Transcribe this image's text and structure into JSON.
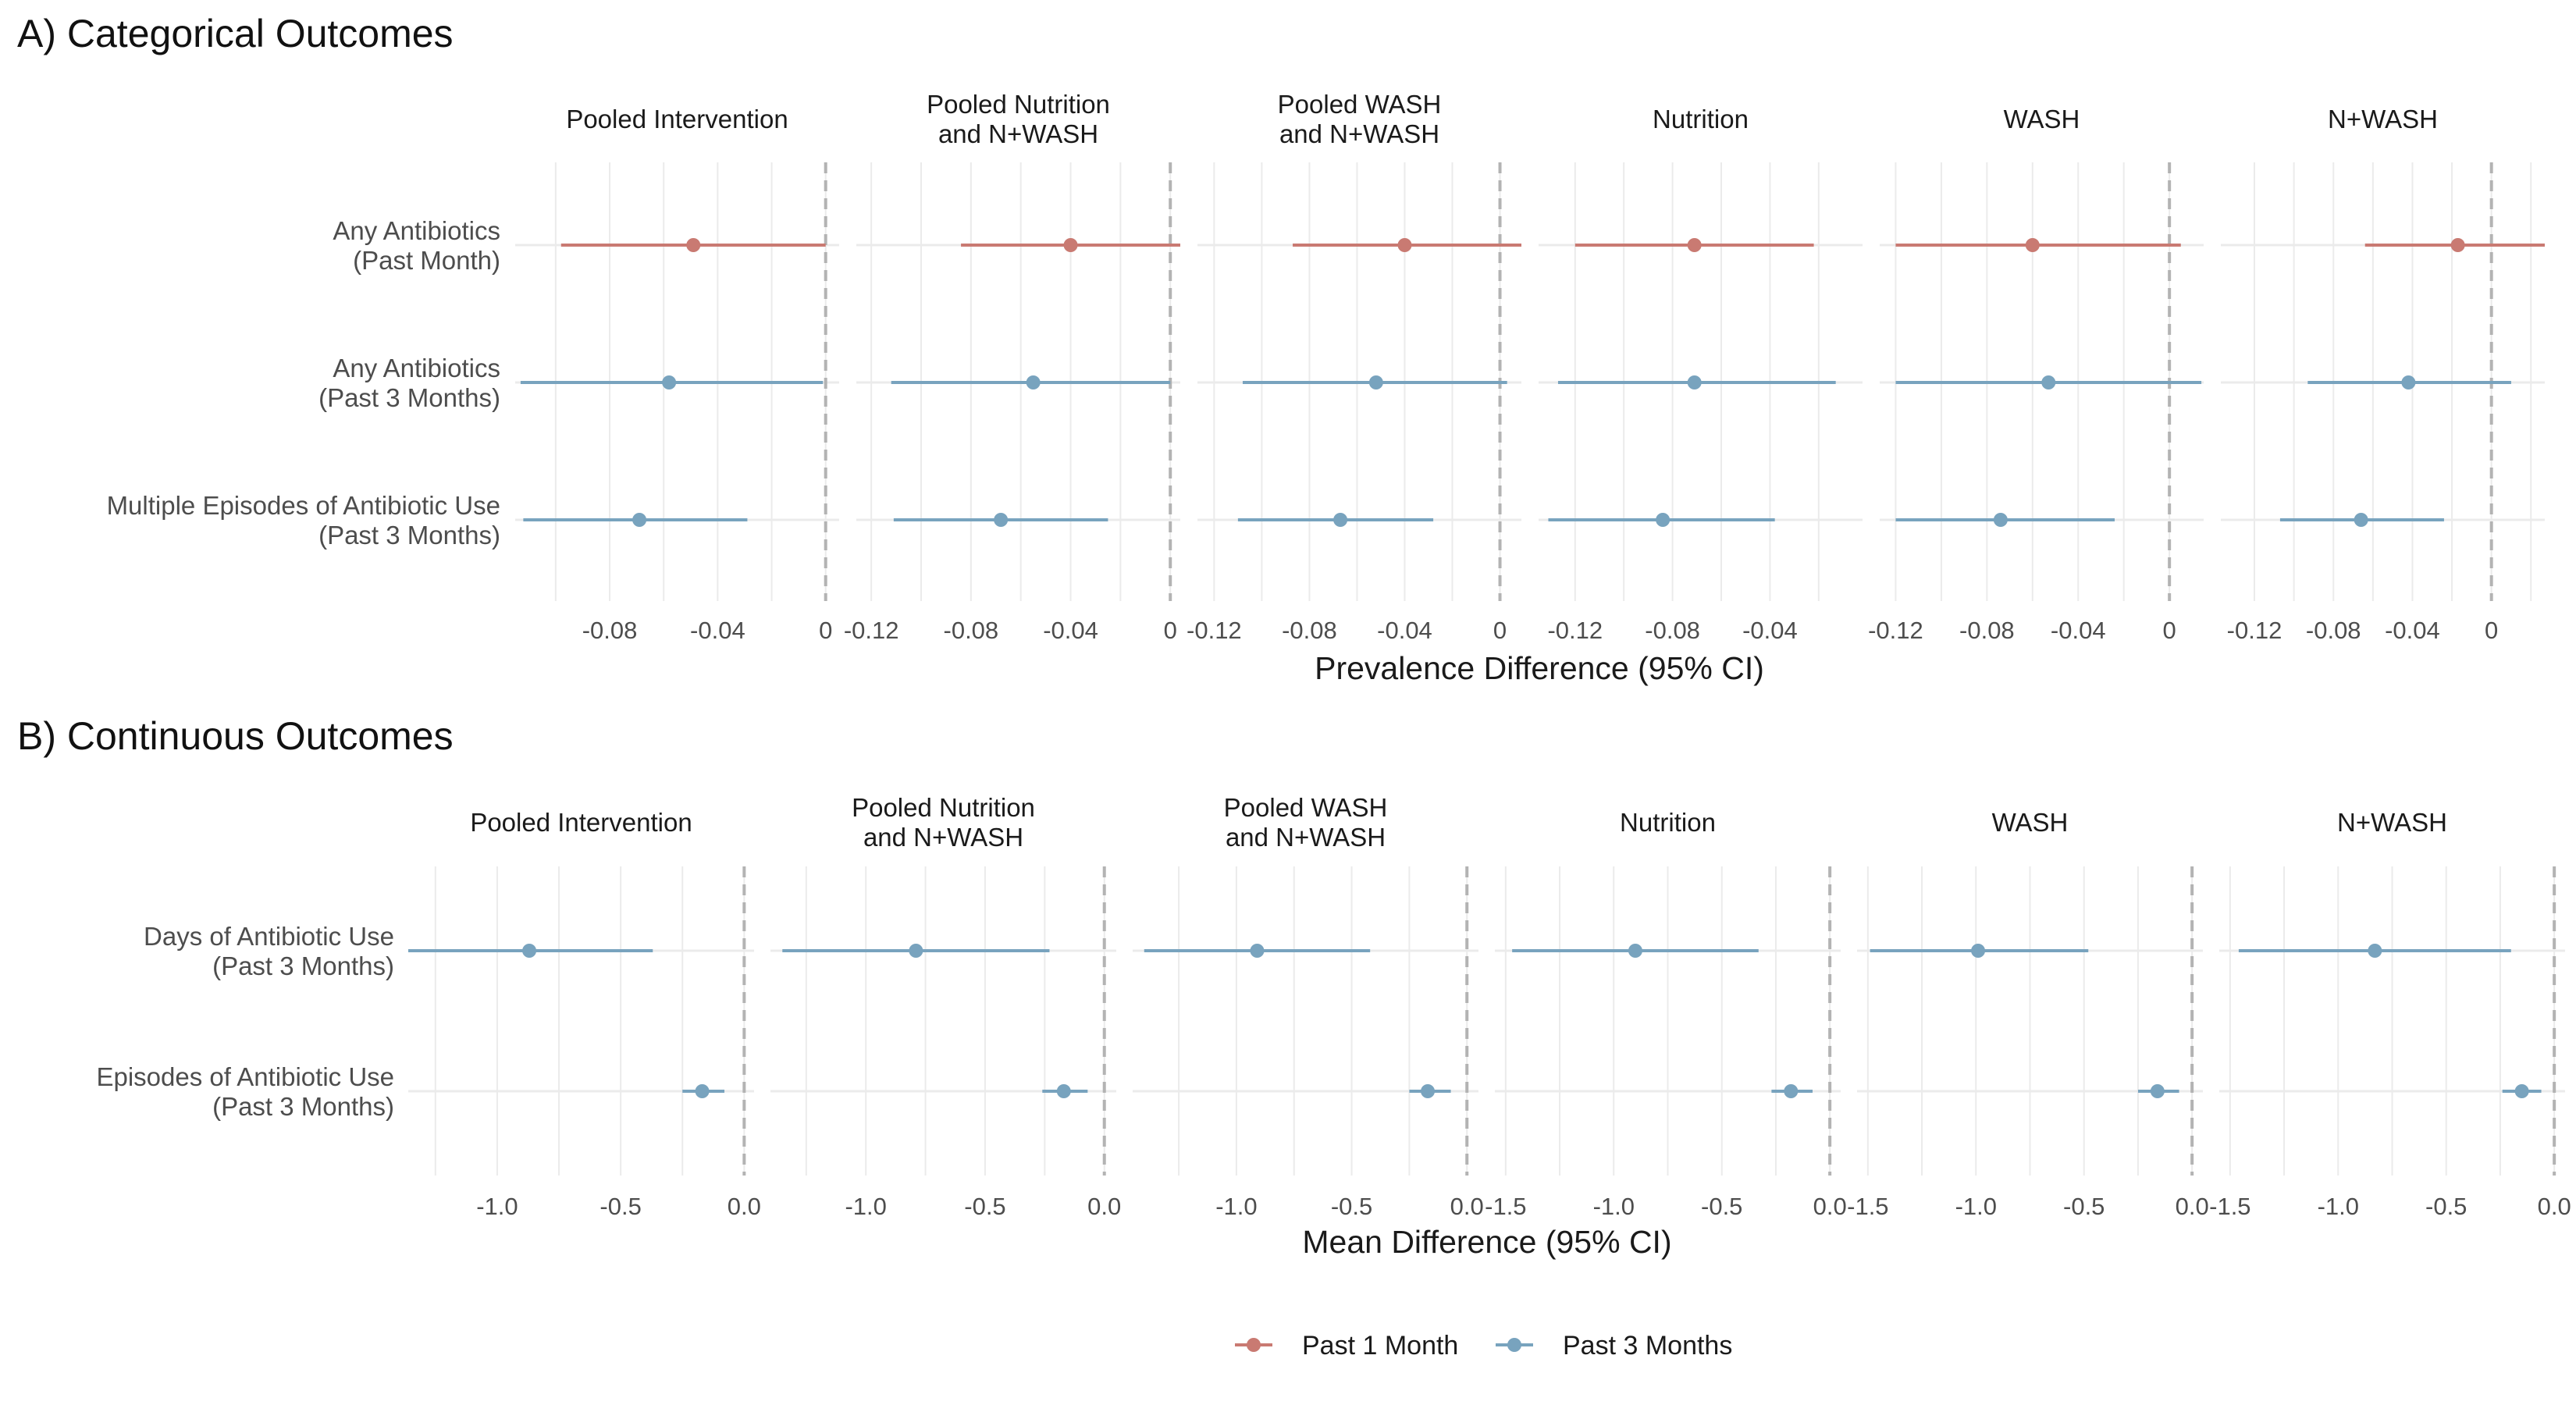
{
  "colors": {
    "past1": "#c97a72",
    "past3": "#78a3be",
    "grid": "#ebebeb",
    "ref": "#b3b3b3"
  },
  "legend": {
    "items": [
      {
        "label": "Past 1 Month",
        "color": "#c97a72"
      },
      {
        "label": "Past 3 Months",
        "color": "#78a3be"
      }
    ]
  },
  "chart_data": [
    {
      "type": "forest",
      "title": "A) Categorical Outcomes",
      "xlabel": "Prevalence Difference (95% CI)",
      "rows": [
        [
          "Any Antibiotics",
          "(Past Month)"
        ],
        [
          "Any Antibiotics",
          "(Past 3 Months)"
        ],
        [
          "Multiple Episodes of Antibiotic Use",
          "(Past 3 Months)"
        ]
      ],
      "facets": [
        {
          "title": [
            "Pooled Intervention"
          ],
          "xlim": [
            -0.115,
            0.005
          ],
          "ticks": [
            -0.08,
            -0.04,
            0
          ],
          "tick_labels": [
            "-0.08",
            "-0.04",
            "0"
          ],
          "points": [
            {
              "row": 0,
              "series": "Past 1 Month",
              "est": -0.049,
              "lo": -0.098,
              "hi": 0.0
            },
            {
              "row": 1,
              "series": "Past 3 Months",
              "est": -0.058,
              "lo": -0.113,
              "hi": -0.001
            },
            {
              "row": 2,
              "series": "Past 3 Months",
              "est": -0.069,
              "lo": -0.112,
              "hi": -0.029
            }
          ]
        },
        {
          "title": [
            "Pooled Nutrition",
            "and N+WASH"
          ],
          "xlim": [
            -0.126,
            0.004
          ],
          "ticks": [
            -0.12,
            -0.08,
            -0.04,
            0
          ],
          "tick_labels": [
            "-0.12",
            "-0.08",
            "-0.04",
            "0"
          ],
          "points": [
            {
              "row": 0,
              "series": "Past 1 Month",
              "est": -0.04,
              "lo": -0.084,
              "hi": 0.004
            },
            {
              "row": 1,
              "series": "Past 3 Months",
              "est": -0.055,
              "lo": -0.112,
              "hi": 0.0
            },
            {
              "row": 2,
              "series": "Past 3 Months",
              "est": -0.068,
              "lo": -0.111,
              "hi": -0.025
            }
          ]
        },
        {
          "title": [
            "Pooled WASH",
            "and N+WASH"
          ],
          "xlim": [
            -0.127,
            0.009
          ],
          "ticks": [
            -0.12,
            -0.08,
            -0.04,
            0
          ],
          "tick_labels": [
            "-0.12",
            "-0.08",
            "-0.04",
            "0"
          ],
          "points": [
            {
              "row": 0,
              "series": "Past 1 Month",
              "est": -0.04,
              "lo": -0.087,
              "hi": 0.009
            },
            {
              "row": 1,
              "series": "Past 3 Months",
              "est": -0.052,
              "lo": -0.108,
              "hi": 0.003
            },
            {
              "row": 2,
              "series": "Past 3 Months",
              "est": -0.067,
              "lo": -0.11,
              "hi": -0.028
            }
          ]
        },
        {
          "title": [
            "Nutrition"
          ],
          "xlim": [
            -0.135,
            -0.002
          ],
          "ticks": [
            -0.12,
            -0.08,
            -0.04
          ],
          "tick_labels": [
            "-0.12",
            "-0.08",
            "-0.04"
          ],
          "points": [
            {
              "row": 0,
              "series": "Past 1 Month",
              "est": -0.071,
              "lo": -0.12,
              "hi": -0.022
            },
            {
              "row": 1,
              "series": "Past 3 Months",
              "est": -0.071,
              "lo": -0.127,
              "hi": -0.013
            },
            {
              "row": 2,
              "series": "Past 3 Months",
              "est": -0.084,
              "lo": -0.131,
              "hi": -0.038
            }
          ]
        },
        {
          "title": [
            "WASH"
          ],
          "xlim": [
            -0.127,
            0.015
          ],
          "ticks": [
            -0.12,
            -0.08,
            -0.04,
            0
          ],
          "tick_labels": [
            "-0.12",
            "-0.08",
            "-0.04",
            "0"
          ],
          "points": [
            {
              "row": 0,
              "series": "Past 1 Month",
              "est": -0.06,
              "lo": -0.12,
              "hi": 0.005
            },
            {
              "row": 1,
              "series": "Past 3 Months",
              "est": -0.053,
              "lo": -0.12,
              "hi": 0.014
            },
            {
              "row": 2,
              "series": "Past 3 Months",
              "est": -0.074,
              "lo": -0.12,
              "hi": -0.024
            }
          ]
        },
        {
          "title": [
            "N+WASH"
          ],
          "xlim": [
            -0.137,
            0.027
          ],
          "ticks": [
            -0.12,
            -0.08,
            -0.04,
            0
          ],
          "tick_labels": [
            "-0.12",
            "-0.08",
            "-0.04",
            "0"
          ],
          "points": [
            {
              "row": 0,
              "series": "Past 1 Month",
              "est": -0.017,
              "lo": -0.064,
              "hi": 0.027
            },
            {
              "row": 1,
              "series": "Past 3 Months",
              "est": -0.042,
              "lo": -0.093,
              "hi": 0.01
            },
            {
              "row": 2,
              "series": "Past 3 Months",
              "est": -0.066,
              "lo": -0.107,
              "hi": -0.024
            }
          ]
        }
      ]
    },
    {
      "type": "forest",
      "title": "B) Continuous Outcomes",
      "xlabel": "Mean Difference (95% CI)",
      "rows": [
        [
          "Days of Antibiotic Use",
          "(Past 3 Months)"
        ],
        [
          "Episodes of Antibiotic Use",
          "(Past 3 Months)"
        ]
      ],
      "facets": [
        {
          "title": [
            "Pooled Intervention"
          ],
          "xlim": [
            -1.36,
            0.04
          ],
          "ticks": [
            -1.0,
            -0.5,
            0.0
          ],
          "tick_labels": [
            "-1.0",
            "-0.5",
            "0.0"
          ],
          "points": [
            {
              "row": 0,
              "series": "Past 3 Months",
              "est": -0.87,
              "lo": -1.36,
              "hi": -0.37
            },
            {
              "row": 1,
              "series": "Past 3 Months",
              "est": -0.17,
              "lo": -0.25,
              "hi": -0.08
            }
          ]
        },
        {
          "title": [
            "Pooled Nutrition",
            "and N+WASH"
          ],
          "xlim": [
            -1.4,
            0.05
          ],
          "ticks": [
            -1.0,
            -0.5,
            0.0
          ],
          "tick_labels": [
            "-1.0",
            "-0.5",
            "0.0"
          ],
          "points": [
            {
              "row": 0,
              "series": "Past 3 Months",
              "est": -0.79,
              "lo": -1.35,
              "hi": -0.23
            },
            {
              "row": 1,
              "series": "Past 3 Months",
              "est": -0.17,
              "lo": -0.26,
              "hi": -0.07
            }
          ]
        },
        {
          "title": [
            "Pooled WASH",
            "and N+WASH"
          ],
          "xlim": [
            -1.45,
            0.05
          ],
          "ticks": [
            -1.0,
            -0.5,
            0.0
          ],
          "tick_labels": [
            "-1.0",
            "-0.5",
            "0.0"
          ],
          "points": [
            {
              "row": 0,
              "series": "Past 3 Months",
              "est": -0.91,
              "lo": -1.4,
              "hi": -0.42
            },
            {
              "row": 1,
              "series": "Past 3 Months",
              "est": -0.17,
              "lo": -0.25,
              "hi": -0.07
            }
          ]
        },
        {
          "title": [
            "Nutrition"
          ],
          "xlim": [
            -1.55,
            0.05
          ],
          "ticks": [
            -1.5,
            -1.0,
            -0.5,
            0.0
          ],
          "tick_labels": [
            "-1.5",
            "-1.0",
            "-0.5",
            "0.0"
          ],
          "points": [
            {
              "row": 0,
              "series": "Past 3 Months",
              "est": -0.9,
              "lo": -1.47,
              "hi": -0.33
            },
            {
              "row": 1,
              "series": "Past 3 Months",
              "est": -0.18,
              "lo": -0.27,
              "hi": -0.08
            }
          ]
        },
        {
          "title": [
            "WASH"
          ],
          "xlim": [
            -1.55,
            0.05
          ],
          "ticks": [
            -1.5,
            -1.0,
            -0.5,
            0.0
          ],
          "tick_labels": [
            "-1.5",
            "-1.0",
            "-0.5",
            "0.0"
          ],
          "points": [
            {
              "row": 0,
              "series": "Past 3 Months",
              "est": -0.99,
              "lo": -1.49,
              "hi": -0.48
            },
            {
              "row": 1,
              "series": "Past 3 Months",
              "est": -0.16,
              "lo": -0.25,
              "hi": -0.06
            }
          ]
        },
        {
          "title": [
            "N+WASH"
          ],
          "xlim": [
            -1.55,
            0.05
          ],
          "ticks": [
            -1.5,
            -1.0,
            -0.5,
            0.0
          ],
          "tick_labels": [
            "-1.5",
            "-1.0",
            "-0.5",
            "0.0"
          ],
          "points": [
            {
              "row": 0,
              "series": "Past 3 Months",
              "est": -0.83,
              "lo": -1.46,
              "hi": -0.2
            },
            {
              "row": 1,
              "series": "Past 3 Months",
              "est": -0.15,
              "lo": -0.24,
              "hi": -0.06
            }
          ]
        }
      ]
    }
  ]
}
